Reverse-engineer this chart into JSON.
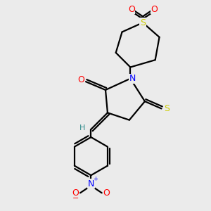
{
  "background_color": "#ebebeb",
  "bond_color": "#000000",
  "atom_colors": {
    "H": "#2e8b8b",
    "N": "#0000ff",
    "O": "#ff0000",
    "S": "#cccc00",
    "S_thione": "#cccc00"
  },
  "figure_size": [
    3.0,
    3.0
  ],
  "dpi": 100
}
